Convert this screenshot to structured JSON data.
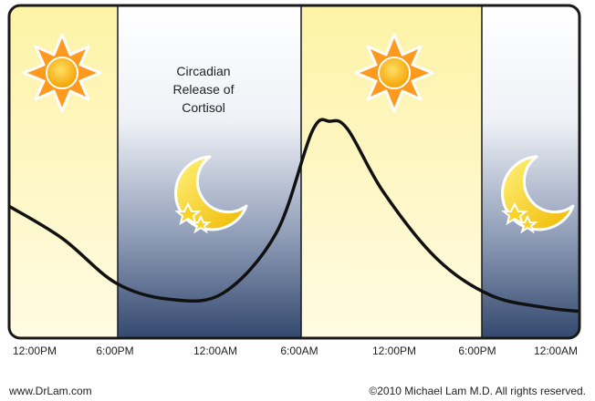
{
  "title_lines": [
    "Circadian",
    "Release of",
    "Cortisol"
  ],
  "time_labels": [
    "12:00PM",
    "6:00PM",
    "12:00AM",
    "6:00AM",
    "12:00PM",
    "6:00PM",
    "12:00AM"
  ],
  "footer": {
    "left": "www.DrLam.com",
    "right": "©2010 Michael Lam M.D. All rights reserved."
  },
  "icons": {
    "day": "sun-icon",
    "night": "moon-stars-icon"
  },
  "colors": {
    "day_band": "#fdf6b8",
    "night_top": "#ffffff",
    "night_bottom": "#34496f",
    "sun": "#ff9a1f",
    "moon": "#fcd322",
    "curve": "#111111",
    "frame": "#1a1a1a"
  },
  "chart_data": {
    "type": "line",
    "x_unit": "hours from 12:00PM",
    "x": [
      0,
      3,
      6,
      9,
      12,
      15,
      17,
      18,
      19,
      21,
      24,
      27,
      30,
      32
    ],
    "y": [
      0.58,
      0.42,
      0.2,
      0.12,
      0.15,
      0.45,
      0.95,
      1.0,
      0.96,
      0.65,
      0.32,
      0.14,
      0.08,
      0.06
    ],
    "y_range": [
      0,
      1.05
    ],
    "bands": [
      {
        "kind": "day",
        "from": 0,
        "to": 6
      },
      {
        "kind": "night",
        "from": 6,
        "to": 18
      },
      {
        "kind": "day",
        "from": 18,
        "to": 28
      },
      {
        "kind": "night",
        "from": 28,
        "to": 32
      }
    ]
  }
}
